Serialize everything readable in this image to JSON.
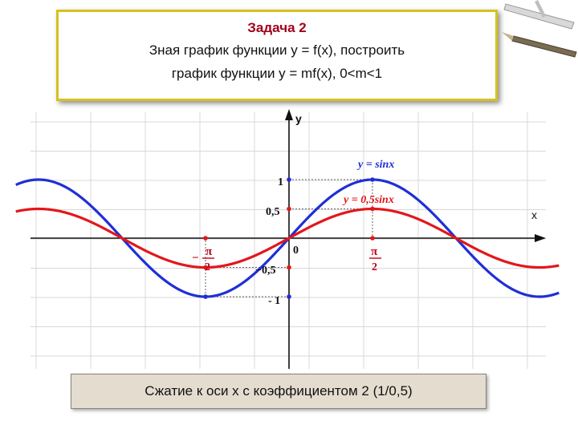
{
  "task": {
    "title": "Задача 2",
    "line1": "Зная график функции  y = f(x), построить",
    "line2": "график функции  y = mf(x), 0<m<1"
  },
  "caption": "Сжатие к оси x с коэффициентом  2 (1/0,5)",
  "chart_data": {
    "type": "line",
    "xlim": [
      -5.14,
      5.08
    ],
    "ylim": [
      -1.7,
      1.6
    ],
    "grid": true,
    "legend": "none",
    "xlabel": "x",
    "ylabel": "y",
    "tick_labels": {
      "x_neg": "π",
      "x_pos": "π",
      "denominator": "2",
      "minus": "−",
      "origin": "0",
      "y_one": "1",
      "y_half": "0,5",
      "y_neg_half": "−0,5",
      "y_neg_one": "- 1"
    },
    "series": [
      {
        "name": "y = sinx",
        "function": "sin",
        "amplitude": 1,
        "color": "#1f2fd6"
      },
      {
        "name": "y = 0,5sinx",
        "function": "sin",
        "amplitude": 0.5,
        "color": "#e3171b"
      }
    ],
    "marked_points": [
      {
        "x": 1.5708,
        "y": 1
      },
      {
        "x": 1.5708,
        "y": 0.5
      },
      {
        "x": -1.5708,
        "y": -1
      },
      {
        "x": -1.5708,
        "y": -0.5
      },
      {
        "x": 0,
        "y": 1
      },
      {
        "x": 0,
        "y": 0.5
      },
      {
        "x": 0,
        "y": -0.5
      },
      {
        "x": 0,
        "y": -1
      },
      {
        "x": 1.5708,
        "y": 0
      },
      {
        "x": -1.5708,
        "y": 0
      }
    ],
    "colors": {
      "axis": "#111111",
      "grid": "#d8d8d8",
      "blue": "#1f2fd6",
      "red": "#e3171b",
      "guide": "#666666"
    }
  }
}
